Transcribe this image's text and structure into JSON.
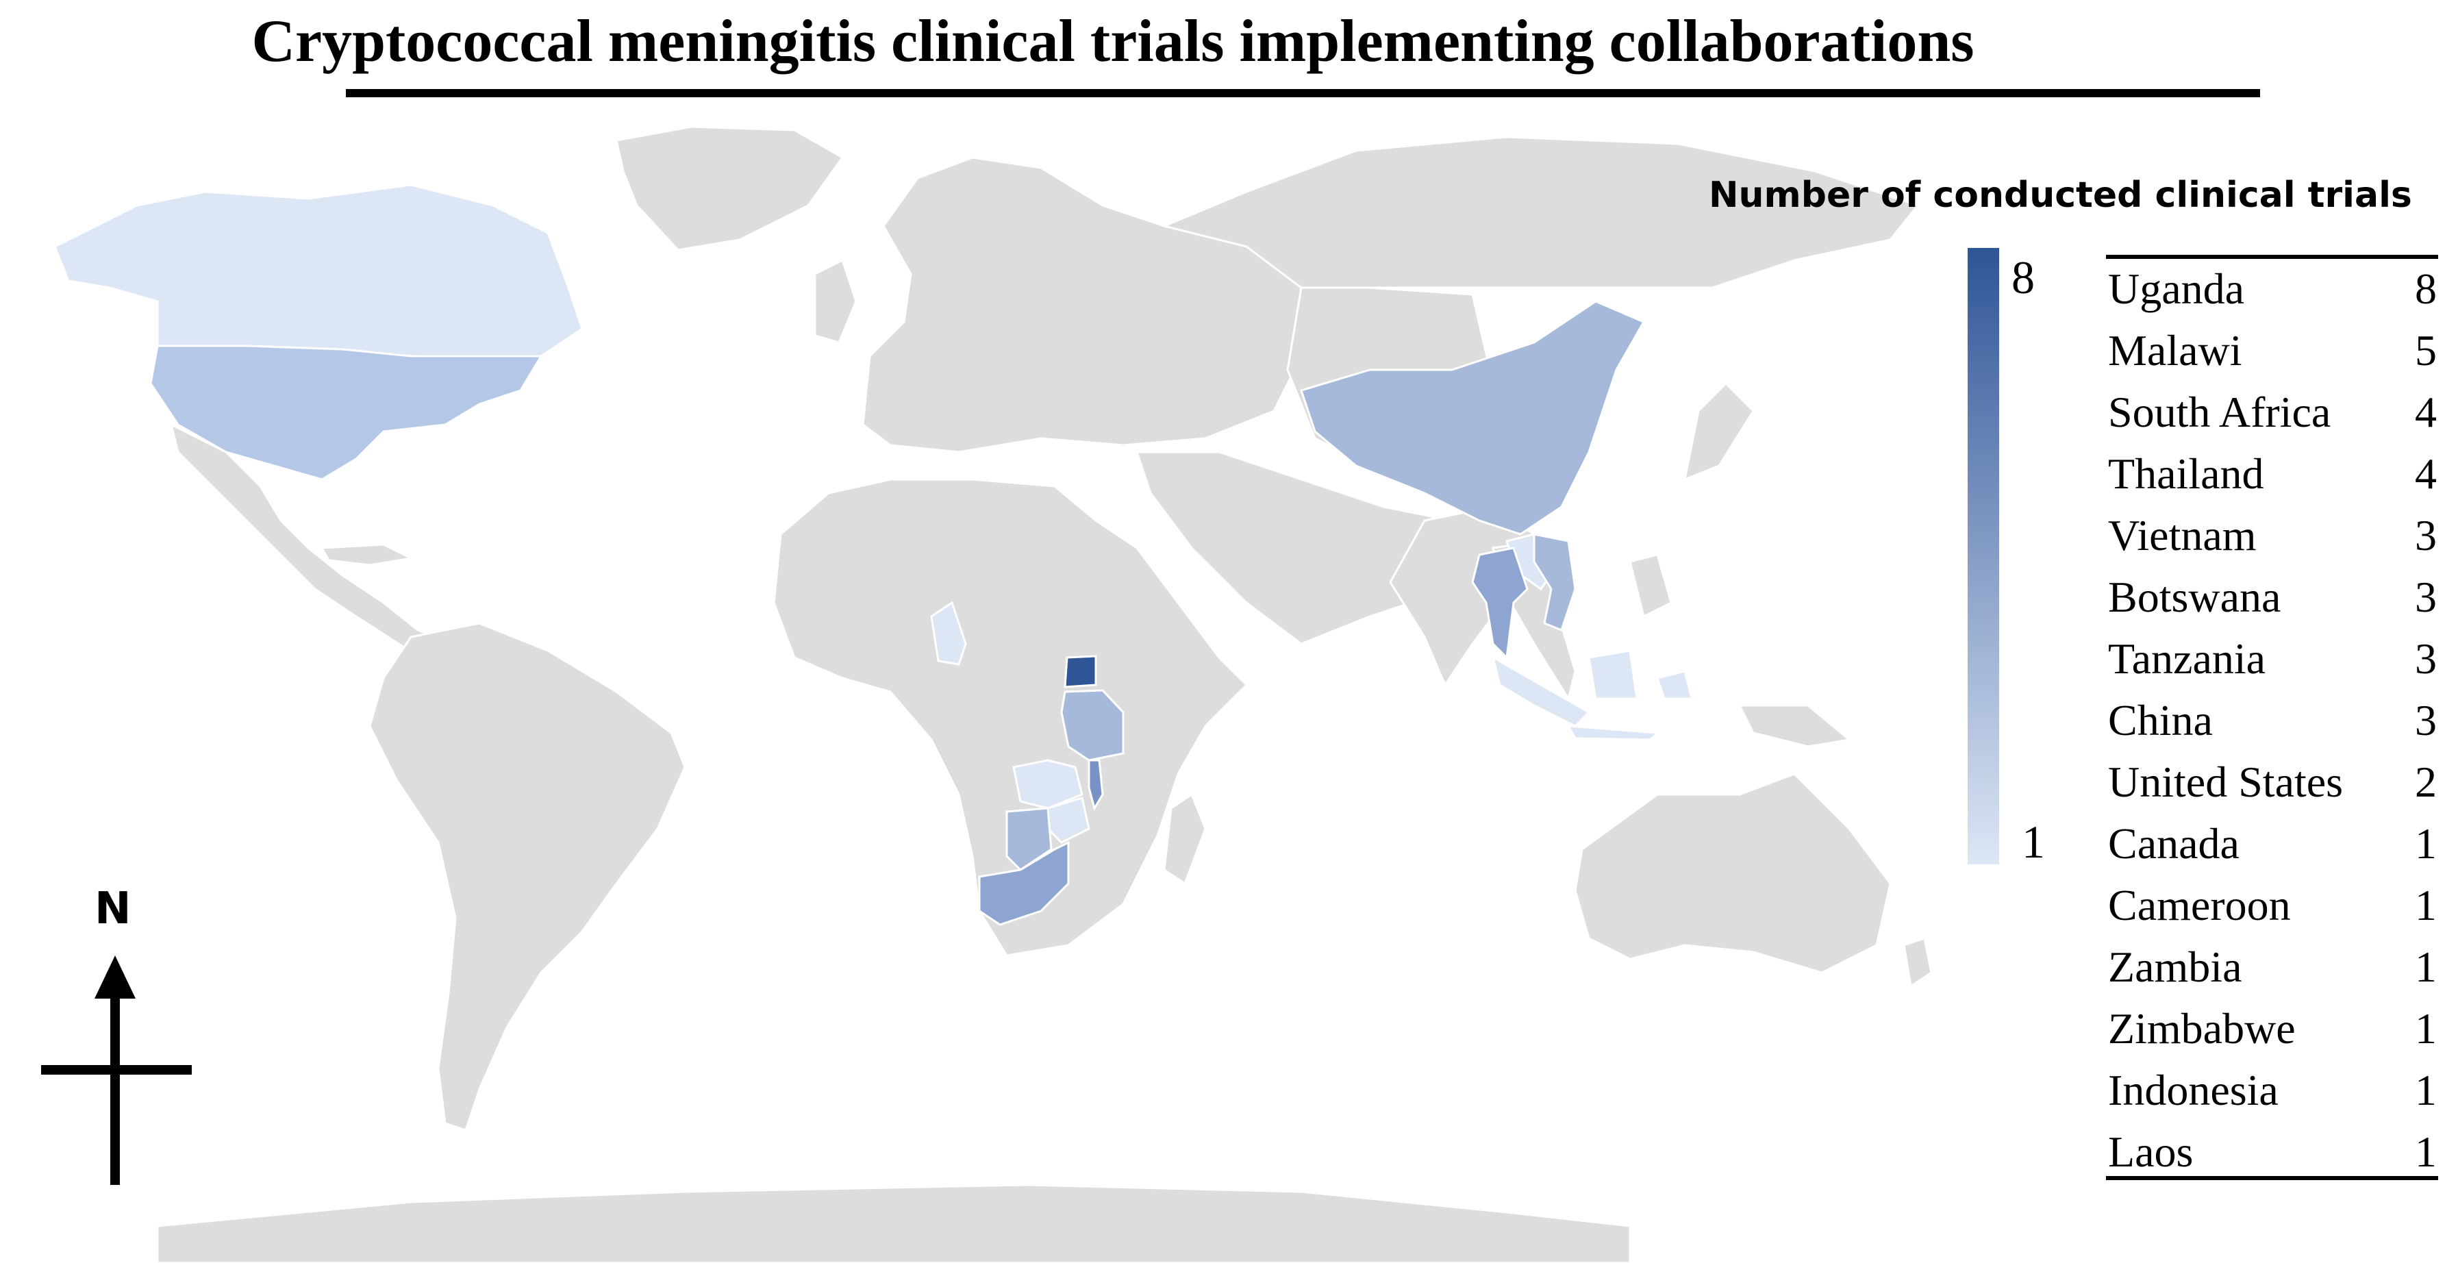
{
  "title": "Cryptococcal meningitis clinical trials implementing collaborations",
  "legend": {
    "title": "Number of conducted  clinical trials",
    "scale_max": "8",
    "scale_min": "1",
    "color_min": "#dce6f5",
    "color_max": "#2f5597"
  },
  "compass": {
    "label": "N"
  },
  "colors": {
    "land": "#dddddd",
    "ocean": "#ffffff",
    "border": "#ffffff"
  },
  "countries": [
    {
      "name": "Uganda",
      "count": 8
    },
    {
      "name": "Malawi",
      "count": 5
    },
    {
      "name": "South Africa",
      "count": 4
    },
    {
      "name": "Thailand",
      "count": 4
    },
    {
      "name": "Vietnam",
      "count": 3
    },
    {
      "name": "Botswana",
      "count": 3
    },
    {
      "name": "Tanzania",
      "count": 3
    },
    {
      "name": "China",
      "count": 3
    },
    {
      "name": "United States",
      "count": 2
    },
    {
      "name": "Canada",
      "count": 1
    },
    {
      "name": "Cameroon",
      "count": 1
    },
    {
      "name": "Zambia",
      "count": 1
    },
    {
      "name": "Zimbabwe",
      "count": 1
    },
    {
      "name": "Indonesia",
      "count": 1
    },
    {
      "name": "Laos",
      "count": 1
    }
  ]
}
